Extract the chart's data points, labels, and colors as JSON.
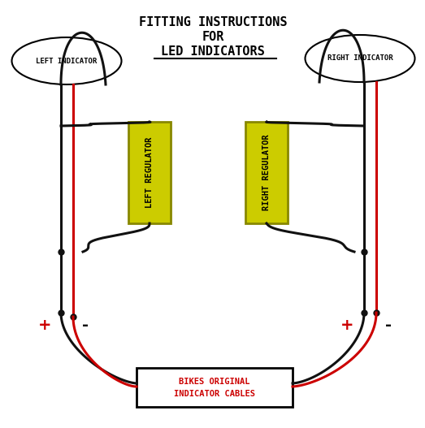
{
  "title_lines": [
    "FITTING INSTRUCTIONS",
    "FOR",
    "LED INDICATORS"
  ],
  "title_fontsize": 11,
  "bg_color": "#ffffff",
  "left_indicator_label": "LEFT INDICATOR",
  "right_indicator_label": "RIGHT INDICATOR",
  "left_regulator_label": "LEFT REGULATOR",
  "right_regulator_label": "RIGHT REGULATOR",
  "bottom_box_label_line1": "BIKES ORIGINAL",
  "bottom_box_label_line2": "INDICATOR CABLES",
  "regulator_color": "#cccc00",
  "regulator_border": "#888800",
  "wire_color_black": "#111111",
  "wire_color_red": "#cc0000",
  "dot_color": "#111111",
  "plus_color": "#cc0000",
  "minus_color": "#111111"
}
